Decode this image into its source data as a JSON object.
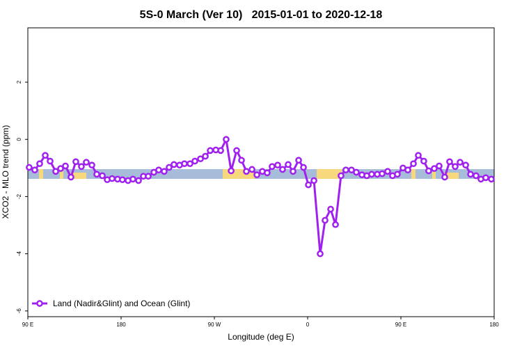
{
  "chart_data": {
    "type": "line",
    "title": "5S-0 March (Ver 10)   2015-01-01 to 2020-12-18",
    "xlabel": "Longitude (deg E)",
    "ylabel": "XCO2 - MLO trend (ppm)",
    "xlim": [
      90,
      540
    ],
    "xticks": [
      {
        "value": 90,
        "label": "90 E"
      },
      {
        "value": 180,
        "label": "180"
      },
      {
        "value": 270,
        "label": "90 W"
      },
      {
        "value": 360,
        "label": "0"
      },
      {
        "value": 450,
        "label": "90 E"
      },
      {
        "value": 540,
        "label": "180"
      }
    ],
    "ylim": [
      -6.2,
      3.9
    ],
    "yticks": [
      -6,
      -4,
      -2,
      0,
      2
    ],
    "legend": "lower left",
    "x": [
      91.3,
      96.7,
      101.4,
      106.8,
      111.5,
      116.9,
      121.6,
      126.3,
      131.6,
      136.3,
      141.7,
      146.4,
      151.8,
      156.5,
      161.9,
      166.6,
      171.3,
      176.6,
      181.3,
      186.7,
      191.4,
      196.8,
      201.5,
      206.2,
      211.6,
      216.3,
      221.6,
      226.3,
      231.0,
      236.4,
      241.1,
      246.5,
      251.2,
      256.6,
      261.3,
      266.0,
      271.4,
      276.1,
      281.4,
      286.2,
      291.5,
      296.2,
      300.9,
      306.3,
      311.0,
      316.3,
      321.0,
      325.7,
      331.1,
      335.8,
      341.2,
      345.9,
      351.3,
      356.0,
      360.7,
      366.1,
      372.1,
      376.8,
      382.2,
      386.9,
      392.2,
      396.9,
      402.3,
      407.0,
      412.4,
      417.1,
      421.8,
      427.2,
      431.9,
      437.2,
      441.9,
      446.6,
      452.0,
      456.7,
      462.1,
      466.8,
      472.1,
      476.8,
      482.2,
      486.9,
      492.3,
      497.0,
      502.4,
      507.1,
      512.5,
      517.2,
      522.5,
      527.2,
      531.9,
      537.3
    ],
    "series": [
      {
        "name": "Land (Nadir&Glint) and Ocean (Glint)",
        "color": "#a020f0",
        "values": [
          -0.98,
          -1.07,
          -0.85,
          -0.56,
          -0.76,
          -1.12,
          -1.02,
          -0.93,
          -1.32,
          -0.78,
          -0.95,
          -0.8,
          -0.9,
          -1.22,
          -1.27,
          -1.41,
          -1.37,
          -1.39,
          -1.41,
          -1.44,
          -1.39,
          -1.44,
          -1.29,
          -1.29,
          -1.15,
          -1.07,
          -1.12,
          -0.98,
          -0.88,
          -0.9,
          -0.85,
          -0.85,
          -0.76,
          -0.68,
          -0.59,
          -0.39,
          -0.37,
          -0.39,
          0.0,
          -1.1,
          -0.39,
          -0.73,
          -1.12,
          -1.05,
          -1.24,
          -1.12,
          -1.17,
          -0.95,
          -0.9,
          -1.05,
          -0.88,
          -1.12,
          -0.73,
          -0.98,
          -1.59,
          -1.44,
          -4.0,
          -2.83,
          -2.44,
          -2.98,
          -1.27,
          -1.07,
          -1.07,
          -1.15,
          -1.24,
          -1.27,
          -1.22,
          -1.22,
          -1.2,
          -1.12,
          -1.27,
          -1.22,
          -1.0,
          -1.07,
          -0.85,
          -0.56,
          -0.76,
          -1.1,
          -1.02,
          -0.93,
          -1.32,
          -0.78,
          -0.95,
          -0.8,
          -0.9,
          -1.22,
          -1.27,
          -1.39,
          -1.34,
          -1.39
        ]
      }
    ]
  }
}
